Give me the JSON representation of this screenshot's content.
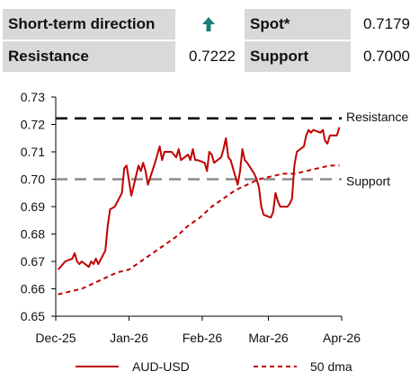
{
  "summary": {
    "short_term_label": "Short-term direction",
    "spot_label": "Spot*",
    "spot_value": "0.7179",
    "resistance_label": "Resistance",
    "resistance_value": "0.7222",
    "support_label": "Support",
    "support_value": "0.7000",
    "direction_icon": "up-arrow-icon",
    "arrow_color": "#1a7f7a"
  },
  "chart_data": {
    "type": "line",
    "title": "",
    "xlabel": "",
    "ylabel": "",
    "ylim": [
      0.65,
      0.73
    ],
    "yticks": [
      0.65,
      0.66,
      0.67,
      0.68,
      0.69,
      0.7,
      0.71,
      0.72,
      0.73
    ],
    "ytick_labels": [
      "0.65",
      "0.66",
      "0.67",
      "0.68",
      "0.69",
      "0.70",
      "0.71",
      "0.72",
      "0.73"
    ],
    "xlim": [
      "2025-12-01",
      "2026-04-01"
    ],
    "xticks": [
      "2025-12-01",
      "2026-01-01",
      "2026-02-01",
      "2026-03-01",
      "2026-04-01"
    ],
    "xtick_labels": [
      "Dec-25",
      "Jan-26",
      "Feb-26",
      "Mar-26",
      "Apr-26"
    ],
    "grid": false,
    "legend_position": "bottom",
    "series": [
      {
        "name": "AUD-USD",
        "style": "solid",
        "color": "#c00000",
        "x": [
          "2025-12-02",
          "2025-12-03",
          "2025-12-05",
          "2025-12-08",
          "2025-12-09",
          "2025-12-10",
          "2025-12-11",
          "2025-12-12",
          "2025-12-15",
          "2025-12-16",
          "2025-12-17",
          "2025-12-18",
          "2025-12-19",
          "2025-12-22",
          "2025-12-23",
          "2025-12-24",
          "2025-12-26",
          "2025-12-29",
          "2025-12-30",
          "2025-12-31",
          "2026-01-02",
          "2026-01-05",
          "2026-01-06",
          "2026-01-07",
          "2026-01-08",
          "2026-01-09",
          "2026-01-12",
          "2026-01-13",
          "2026-01-14",
          "2026-01-15",
          "2026-01-16",
          "2026-01-19",
          "2026-01-20",
          "2026-01-21",
          "2026-01-22",
          "2026-01-23",
          "2026-01-26",
          "2026-01-27",
          "2026-01-28",
          "2026-01-29",
          "2026-01-30",
          "2026-02-02",
          "2026-02-03",
          "2026-02-04",
          "2026-02-05",
          "2026-02-06",
          "2026-02-09",
          "2026-02-10",
          "2026-02-11",
          "2026-02-12",
          "2026-02-13",
          "2026-02-16",
          "2026-02-17",
          "2026-02-18",
          "2026-02-19",
          "2026-02-20",
          "2026-02-23",
          "2026-02-24",
          "2026-02-25",
          "2026-02-26",
          "2026-02-27",
          "2026-03-02",
          "2026-03-03",
          "2026-03-04",
          "2026-03-05",
          "2026-03-06",
          "2026-03-09",
          "2026-03-10",
          "2026-03-11",
          "2026-03-12",
          "2026-03-13",
          "2026-03-16",
          "2026-03-17",
          "2026-03-18",
          "2026-03-19",
          "2026-03-20",
          "2026-03-23",
          "2026-03-24",
          "2026-03-25",
          "2026-03-26",
          "2026-03-27",
          "2026-03-30",
          "2026-03-31"
        ],
        "y": [
          0.667,
          0.668,
          0.67,
          0.671,
          0.673,
          0.67,
          0.669,
          0.67,
          0.668,
          0.67,
          0.669,
          0.671,
          0.669,
          0.674,
          0.683,
          0.689,
          0.69,
          0.695,
          0.704,
          0.705,
          0.694,
          0.705,
          0.703,
          0.706,
          0.703,
          0.698,
          0.706,
          0.709,
          0.712,
          0.707,
          0.71,
          0.71,
          0.709,
          0.708,
          0.711,
          0.707,
          0.709,
          0.707,
          0.711,
          0.707,
          0.707,
          0.706,
          0.703,
          0.71,
          0.709,
          0.706,
          0.708,
          0.711,
          0.715,
          0.708,
          0.707,
          0.698,
          0.703,
          0.711,
          0.707,
          0.706,
          0.702,
          0.7,
          0.697,
          0.69,
          0.687,
          0.686,
          0.688,
          0.695,
          0.692,
          0.69,
          0.69,
          0.691,
          0.693,
          0.705,
          0.71,
          0.712,
          0.716,
          0.718,
          0.717,
          0.718,
          0.717,
          0.718,
          0.714,
          0.713,
          0.716,
          0.716,
          0.719
        ]
      },
      {
        "name": "50 dma",
        "style": "dashed",
        "color": "#c00000",
        "x": [
          "2025-12-02",
          "2025-12-07",
          "2025-12-12",
          "2025-12-17",
          "2025-12-22",
          "2025-12-27",
          "2026-01-01",
          "2026-01-06",
          "2026-01-11",
          "2026-01-16",
          "2026-01-21",
          "2026-01-26",
          "2026-01-31",
          "2026-02-05",
          "2026-02-10",
          "2026-02-15",
          "2026-02-20",
          "2026-02-25",
          "2026-03-02",
          "2026-03-07",
          "2026-03-12",
          "2026-03-17",
          "2026-03-22",
          "2026-03-27",
          "2026-03-31"
        ],
        "y": [
          0.658,
          0.659,
          0.66,
          0.662,
          0.664,
          0.666,
          0.667,
          0.67,
          0.673,
          0.676,
          0.679,
          0.683,
          0.686,
          0.69,
          0.693,
          0.696,
          0.698,
          0.7,
          0.701,
          0.702,
          0.702,
          0.703,
          0.704,
          0.705,
          0.705
        ]
      }
    ],
    "reference_lines": [
      {
        "label": "Resistance",
        "value": 0.7222,
        "style": "dashed",
        "color": "#000000"
      },
      {
        "label": "Support",
        "value": 0.7,
        "style": "dashed",
        "color": "#8c8c8c"
      }
    ]
  }
}
